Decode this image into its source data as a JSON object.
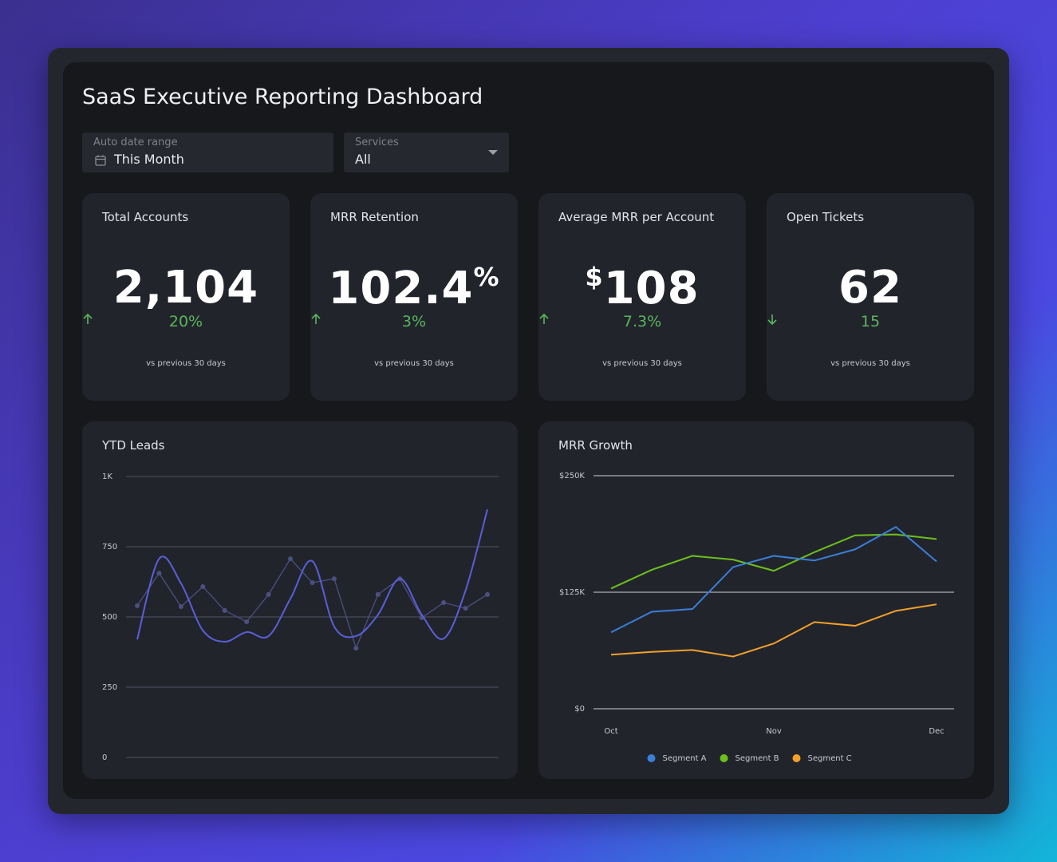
{
  "title": "SaaS Executive Reporting Dashboard",
  "filters": [
    {
      "label": "Auto date range",
      "value": "This Month"
    },
    {
      "label": "Services",
      "value": "All"
    }
  ],
  "kpis": [
    {
      "title": "Total Accounts",
      "value": "2,104",
      "change": "20%",
      "direction": "up",
      "note": "vs previous 30 days"
    },
    {
      "title": "MRR Retention",
      "value": "102.4",
      "suffix": "%",
      "change": "3%",
      "direction": "up",
      "note": "vs previous 30 days"
    },
    {
      "title": "Average MRR per Account",
      "prefix": "$",
      "value": "108",
      "change": "7.3%",
      "direction": "up",
      "note": "vs previous 30 days"
    },
    {
      "title": "Open Tickets",
      "value": "62",
      "change": "15",
      "direction": "down",
      "note": "vs previous 30 days"
    }
  ],
  "chart_data": [
    {
      "type": "line",
      "title": "YTD Leads",
      "categories": [
        null,
        null,
        null,
        null,
        null,
        null,
        null,
        null,
        null,
        null,
        null,
        null,
        null,
        null,
        null,
        null,
        null
      ],
      "series": [
        {
          "color": "#5a5fd8",
          "smooth": true,
          "values": [
            420,
            707,
            620,
            452,
            412,
            446,
            432,
            565,
            699,
            466,
            432,
            508,
            636,
            508,
            423,
            594,
            883
          ]
        },
        {
          "color": "#4b5080",
          "markers": true,
          "values": [
            540,
            656,
            537,
            608,
            523,
            483,
            580,
            707,
            622,
            636,
            389,
            580,
            636,
            497,
            551,
            531,
            580
          ]
        }
      ],
      "ylim": [
        0,
        1000
      ],
      "yticks": [
        0,
        250,
        500,
        750,
        {
          "value": 1000,
          "label": "1K"
        }
      ],
      "grid": true
    },
    {
      "type": "line",
      "title": "MRR Growth",
      "categories": [
        "Oct",
        null,
        null,
        null,
        "Nov",
        null,
        null,
        null,
        "Dec"
      ],
      "series": [
        {
          "name": "Segment A",
          "color": "#3a7fd8",
          "values": [
            82000,
            104000,
            107000,
            152000,
            164000,
            159000,
            171000,
            195000,
            158000
          ]
        },
        {
          "name": "Segment B",
          "color": "#6cc01c",
          "values": [
            129000,
            149000,
            164000,
            160000,
            148000,
            168000,
            186000,
            187000,
            182000
          ]
        },
        {
          "name": "Segment C",
          "color": "#f2a02a",
          "values": [
            58000,
            61000,
            63000,
            56000,
            70000,
            93000,
            89000,
            105000,
            112000
          ]
        }
      ],
      "ylim": [
        0,
        250000
      ],
      "yticks": [
        {
          "value": 0,
          "label": "$0"
        },
        {
          "value": 125000,
          "label": "$125K"
        },
        {
          "value": 250000,
          "label": "$250K"
        }
      ],
      "grid": true,
      "legend": "bottom"
    }
  ]
}
